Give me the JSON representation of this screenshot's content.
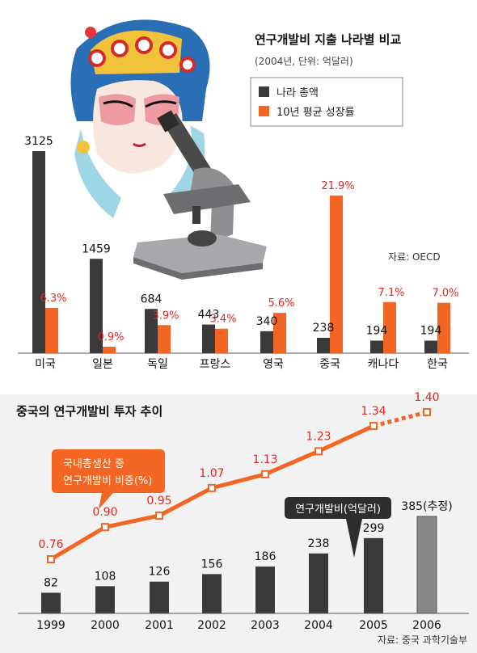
{
  "colors": {
    "dark": "#3a3a3a",
    "orange": "#f26522",
    "estimate": "#888888",
    "red_label": "#e8251d",
    "bg_bottom": "#f2f2f2"
  },
  "chart_data": [
    {
      "type": "bar",
      "title": "연구개발비 지출 나라별 비교",
      "subtitle": "(2004년, 단위: 억달러)",
      "legend": [
        "나라 총액",
        "10년 평균 성장률"
      ],
      "legend_position": "top-right",
      "categories": [
        "미국",
        "일본",
        "독일",
        "프랑스",
        "영국",
        "중국",
        "캐나다",
        "한국"
      ],
      "series": [
        {
          "name": "나라 총액",
          "values": [
            3125,
            1459,
            684,
            443,
            340,
            238,
            194,
            194
          ],
          "labels": [
            "3125",
            "1459",
            "684",
            "443",
            "340",
            "238",
            "194",
            "194"
          ]
        },
        {
          "name": "10년 평균 성장률",
          "values": [
            6.3,
            0.9,
            3.9,
            3.4,
            5.6,
            21.9,
            7.1,
            7.0
          ],
          "labels": [
            "6.3%",
            "0.9%",
            "3.9%",
            "3.4%",
            "5.6%",
            "21.9%",
            "7.1%",
            "7.0%"
          ]
        }
      ],
      "source": "자료: OECD"
    },
    {
      "type": "bar+line",
      "title": "중국의 연구개발비 투자 추이",
      "categories": [
        "1999",
        "2000",
        "2001",
        "2002",
        "2003",
        "2004",
        "2005",
        "2006"
      ],
      "bar_series": {
        "name": "연구개발비(억달러)",
        "values": [
          82,
          108,
          126,
          156,
          186,
          238,
          299,
          385
        ],
        "labels": [
          "82",
          "108",
          "126",
          "156",
          "186",
          "238",
          "299",
          "385(추정)"
        ],
        "estimate_index": 7
      },
      "line_series": {
        "name": "국내총생산 중 연구개발비 비중(%)",
        "name_lines": [
          "국내총생산 중",
          "연구개발비 비중(%)"
        ],
        "x": [
          "1999",
          "2000",
          "2001",
          "2002",
          "2003",
          "2004",
          "2005",
          "2006"
        ],
        "values": [
          0.76,
          0.9,
          0.95,
          1.07,
          1.13,
          1.23,
          1.34,
          1.4
        ],
        "labels": [
          "0.76",
          "0.90",
          "0.95",
          "1.07",
          "1.13",
          "1.23",
          "1.34",
          "1.40"
        ],
        "dashed_from_index": 6
      },
      "source": "자료: 중국 과학기술부"
    }
  ]
}
